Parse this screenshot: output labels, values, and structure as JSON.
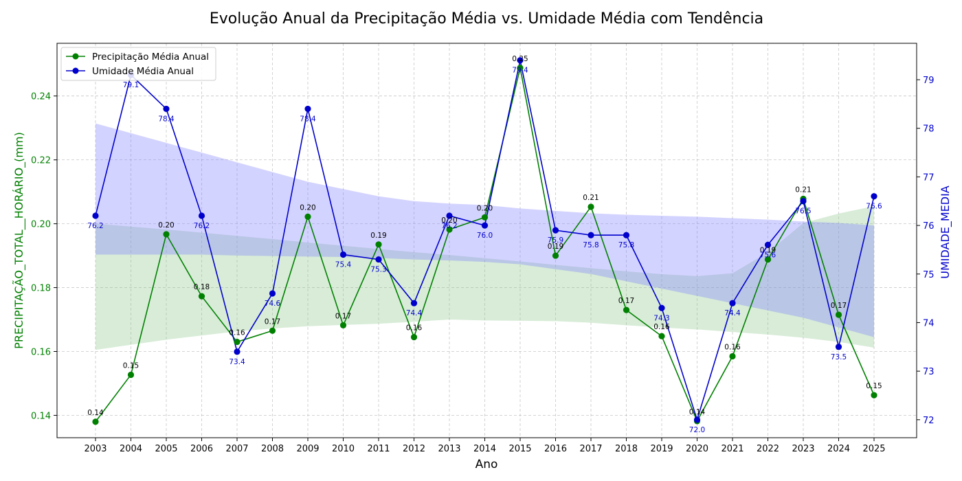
{
  "chart_data": {
    "type": "line",
    "title": "Evolução Anual da Precipitação Média vs. Umidade Média com Tendência",
    "xlabel": "Ano",
    "ylabel_left": "PRECIPITAÇÃO_TOTAL__HORÁRIO_(mm)",
    "ylabel_right": "UMIDADE_MEDIA",
    "x": [
      "2003",
      "2004",
      "2005",
      "2006",
      "2007",
      "2008",
      "2009",
      "2010",
      "2011",
      "2012",
      "2013",
      "2014",
      "2015",
      "2016",
      "2017",
      "2018",
      "2019",
      "2020",
      "2021",
      "2022",
      "2023",
      "2024",
      "2025"
    ],
    "y_left_ticks": [
      "0.14",
      "0.16",
      "0.18",
      "0.20",
      "0.22",
      "0.24"
    ],
    "y_right_ticks": [
      "72",
      "73",
      "74",
      "75",
      "76",
      "77",
      "78",
      "79"
    ],
    "ylim_left": [
      0.133,
      0.2565
    ],
    "ylim_right": [
      71.63,
      79.75
    ],
    "series": [
      {
        "name": "Precipitação Média Anual",
        "axis": "left",
        "color": "#008000",
        "values": [
          0.138,
          0.1527,
          0.1967,
          0.1773,
          0.163,
          0.1665,
          0.2022,
          0.1682,
          0.1935,
          0.1645,
          0.1982,
          0.202,
          0.2488,
          0.19,
          0.2053,
          0.173,
          0.1648,
          0.1382,
          0.1585,
          0.1888,
          0.2078,
          0.1715,
          0.1463
        ],
        "labels": [
          "0.14",
          "0.15",
          "0.20",
          "0.18",
          "0.16",
          "0.17",
          "0.20",
          "0.17",
          "0.19",
          "0.16",
          "0.20",
          "0.20",
          "0.25",
          "0.19",
          "0.21",
          "0.17",
          "0.16",
          "0.14",
          "0.16",
          "0.19",
          "0.21",
          "0.17",
          "0.15"
        ],
        "band_upper": [
          0.2,
          0.1991,
          0.1982,
          0.1972,
          0.1962,
          0.1952,
          0.1941,
          0.1931,
          0.1921,
          0.1911,
          0.1902,
          0.1892,
          0.1882,
          0.1871,
          0.1861,
          0.1851,
          0.1842,
          0.1836,
          0.1845,
          0.191,
          0.2002,
          0.2032,
          0.2055
        ],
        "band_lower": [
          0.1605,
          0.1621,
          0.1637,
          0.165,
          0.1663,
          0.1672,
          0.1679,
          0.1683,
          0.1687,
          0.1693,
          0.17,
          0.1697,
          0.1696,
          0.1695,
          0.169,
          0.1682,
          0.1675,
          0.1669,
          0.1661,
          0.1653,
          0.1643,
          0.163,
          0.1612
        ]
      },
      {
        "name": "Umidade Média Anual",
        "axis": "right",
        "color": "#0000cc",
        "values": [
          76.2,
          79.1,
          78.4,
          76.2,
          73.4,
          74.6,
          78.4,
          75.4,
          75.3,
          74.4,
          76.2,
          76.0,
          79.4,
          75.9,
          75.8,
          75.8,
          74.3,
          72.0,
          74.4,
          75.6,
          76.5,
          73.5,
          76.6
        ],
        "labels": [
          "76.2",
          "79.1",
          "78.4",
          "76.2",
          "73.4",
          "74.6",
          "78.4",
          "75.4",
          "75.3",
          "74.4",
          "76.2",
          "76.0",
          "79.4",
          "75.9",
          "75.8",
          "75.8",
          "74.3",
          "72.0",
          "74.4",
          "75.6",
          "76.5",
          "73.5",
          "76.6"
        ],
        "band_upper": [
          78.1,
          77.9,
          77.7,
          77.5,
          77.3,
          77.1,
          76.9,
          76.75,
          76.6,
          76.5,
          76.45,
          76.42,
          76.35,
          76.3,
          76.25,
          76.22,
          76.2,
          76.18,
          76.15,
          76.12,
          76.08,
          76.05,
          76.0
        ],
        "band_lower": [
          75.4,
          75.4,
          75.4,
          75.4,
          75.38,
          75.37,
          75.36,
          75.35,
          75.33,
          75.3,
          75.28,
          75.25,
          75.2,
          75.1,
          75.0,
          74.85,
          74.7,
          74.55,
          74.4,
          74.25,
          74.1,
          73.9,
          73.7
        ]
      }
    ],
    "legend_position": "top-left",
    "grid": true,
    "colors": {
      "left_axis": "#008000",
      "right_axis": "#0000cc",
      "green_band": "#90c890",
      "blue_band": "#8080ff"
    }
  }
}
